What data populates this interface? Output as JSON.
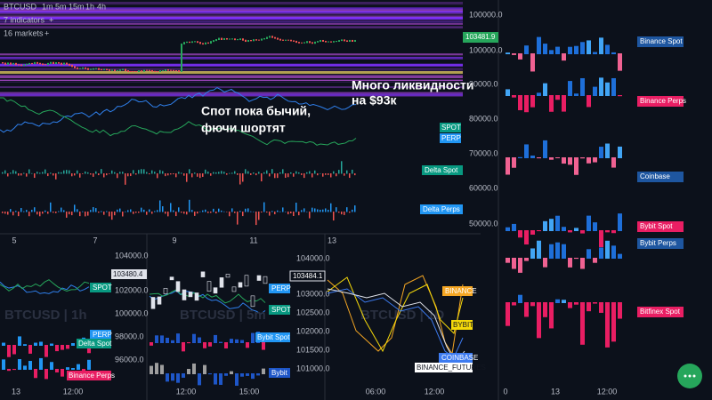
{
  "toolbar": {
    "symbol": "BTCUSD",
    "intervals": [
      "1m",
      "5m",
      "15m",
      "1h",
      "4h"
    ],
    "indicators": "7 indicators",
    "markets": "16 markets"
  },
  "main_chart": {
    "price_label": "103481.9",
    "annotations": [
      "Много ликвидности",
      "на $93к",
      "Спот пока бычий,",
      "фючи шортят"
    ],
    "labels": [
      "SPOT",
      "PERP",
      "Delta Spot",
      "Delta Perps"
    ],
    "x_labels": [
      "5",
      "7",
      "9",
      "11",
      "13"
    ]
  },
  "right_panel": {
    "y_labels": [
      "100000.0",
      "100000.0",
      "90000.0",
      "80000.0",
      "70000.0",
      "60000.0",
      "50000.0"
    ],
    "exchanges": [
      "Binance Spot",
      "Binance Perps",
      "Coinbase",
      "Bybit Spot",
      "Bybit Perps",
      "Bitfinex Spot"
    ],
    "x_labels": [
      "0",
      "13",
      "12:00"
    ]
  },
  "bottom_panels": [
    {
      "watermark": "BTCUSD | 1h",
      "labels": [
        "SPOT",
        "PERP",
        "Delta Spot",
        "Binance Perps"
      ],
      "x_labels": [
        "13",
        "12:00"
      ],
      "y_labels": [
        "104000.0",
        "103480.4",
        "102000.0",
        "100000.0",
        "98000.0",
        "96000.0"
      ]
    },
    {
      "watermark": "BTCUSD | 5m",
      "labels": [
        "PERP",
        "SPOT",
        "Bybit Spot",
        "Bybit"
      ],
      "x_labels": [
        "12:00",
        "15:00"
      ],
      "y_labels": [
        "104000.0",
        "103484.1",
        "103000.0",
        "102500.0",
        "102000.0",
        "101500.0",
        "101000.0"
      ]
    },
    {
      "watermark": "BTCUSD | 1D",
      "labels": [
        "BINANCE",
        "BYBIT",
        "COINBASE",
        "BINANCE_FUTURES"
      ],
      "x_labels": [
        "06:00",
        "12:00"
      ]
    }
  ]
}
